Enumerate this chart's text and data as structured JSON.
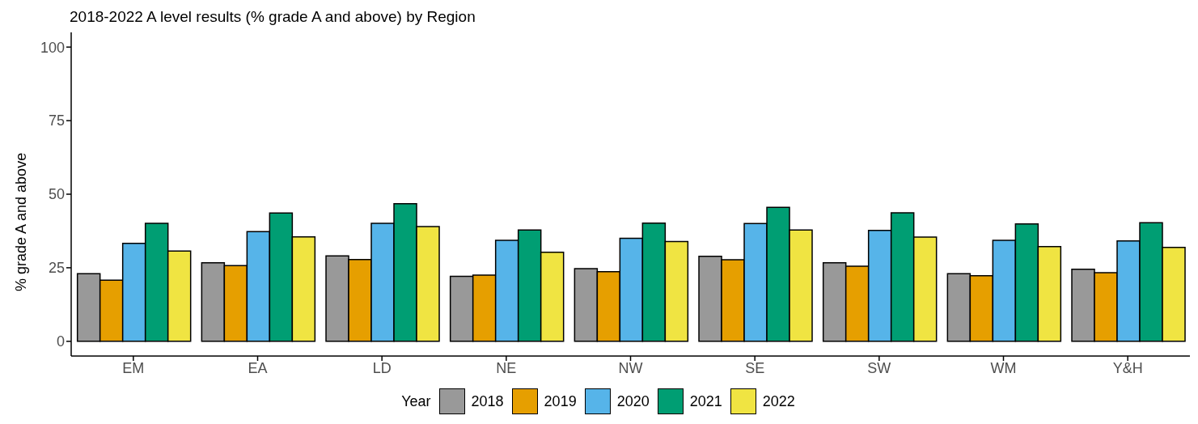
{
  "chart_data": {
    "type": "bar",
    "title": "2018-2022 A level results (% grade A and above) by Region",
    "ylabel": "% grade A and above",
    "legend_title": "Year",
    "categories": [
      "EM",
      "EA",
      "LD",
      "NE",
      "NW",
      "SE",
      "SW",
      "WM",
      "Y&H"
    ],
    "series": [
      {
        "name": "2018",
        "color": "#999999",
        "values": [
          23.0,
          26.7,
          29.0,
          22.1,
          24.7,
          28.9,
          26.7,
          23.0,
          24.5
        ]
      },
      {
        "name": "2019",
        "color": "#e69f00",
        "values": [
          20.8,
          25.7,
          27.8,
          22.5,
          23.7,
          27.7,
          25.5,
          22.3,
          23.3
        ]
      },
      {
        "name": "2020",
        "color": "#56b4e9",
        "values": [
          33.3,
          37.3,
          40.1,
          34.3,
          35.0,
          40.0,
          37.7,
          34.3,
          34.1
        ]
      },
      {
        "name": "2021",
        "color": "#009e73",
        "values": [
          40.1,
          43.6,
          46.8,
          37.8,
          40.2,
          45.5,
          43.7,
          39.9,
          40.3
        ]
      },
      {
        "name": "2022",
        "color": "#f0e442",
        "values": [
          30.7,
          35.5,
          39.0,
          30.3,
          33.9,
          37.8,
          35.4,
          32.2,
          31.9
        ]
      }
    ],
    "ylim": [
      -5,
      105
    ],
    "yticks": [
      0,
      25,
      50,
      75,
      100
    ],
    "grid": false,
    "legend": "bottom"
  }
}
